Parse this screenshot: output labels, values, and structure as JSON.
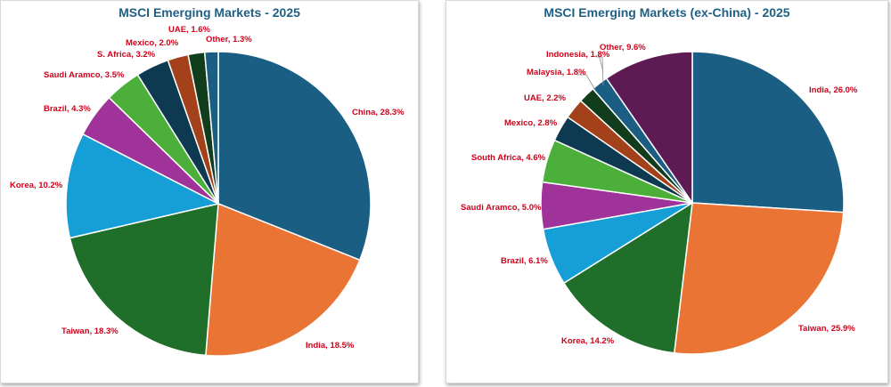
{
  "chart_data": [
    {
      "type": "pie",
      "title": "MSCI Emerging Markets - 2025",
      "categories": [
        "China",
        "India",
        "Taiwan",
        "Korea",
        "Brazil",
        "Saudi Aramco",
        "S. Africa",
        "Mexico",
        "UAE",
        "Other"
      ],
      "values": [
        28.3,
        18.5,
        18.3,
        10.2,
        4.3,
        3.5,
        3.2,
        2.0,
        1.6,
        1.3
      ],
      "labels": [
        "China, 28.3%",
        "India, 18.5%",
        "Taiwan, 18.3%",
        "Korea, 10.2%",
        "Brazil, 4.3%",
        "Saudi Aramco, 3.5%",
        "S. Africa, 3.2%",
        "Mexico, 2.0%",
        "UAE, 1.6%",
        "Other, 1.3%"
      ],
      "colors": [
        "#1b5e83",
        "#ea7434",
        "#1f6e2a",
        "#159fd6",
        "#a03399",
        "#4caf3a",
        "#0e3a51",
        "#a3421a",
        "#123d1c",
        "#1b5e83"
      ]
    },
    {
      "type": "pie",
      "title": "MSCI Emerging Markets (ex-China) - 2025",
      "categories": [
        "India",
        "Taiwan",
        "Korea",
        "Brazil",
        "Saudi Aramco",
        "South Africa",
        "Mexico",
        "UAE",
        "Malaysia",
        "Indonesia",
        "Other"
      ],
      "values": [
        26.0,
        25.9,
        14.2,
        6.1,
        5.0,
        4.6,
        2.8,
        2.2,
        1.8,
        1.8,
        9.6
      ],
      "labels": [
        "India, 26.0%",
        "Taiwan, 25.9%",
        "Korea, 14.2%",
        "Brazil, 6.1%",
        "Saudi Aramco, 5.0%",
        "South Africa, 4.6%",
        "Mexico, 2.8%",
        "UAE, 2.2%",
        "Malaysia, 1.8%",
        "Indonesia, 1.8%",
        "Other, 9.6%"
      ],
      "colors": [
        "#1b5e83",
        "#ea7434",
        "#1f6e2a",
        "#159fd6",
        "#a03399",
        "#4caf3a",
        "#0e3a51",
        "#a3421a",
        "#123d1c",
        "#1b5e83",
        "#5e1a52"
      ]
    }
  ]
}
